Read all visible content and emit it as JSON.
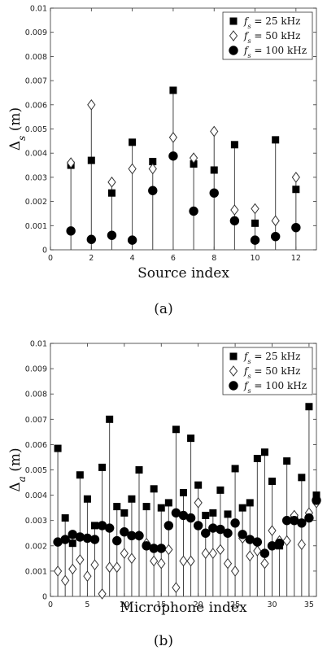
{
  "chart_data": [
    {
      "type": "scatter",
      "caption": "(a)",
      "xlabel": "Source index",
      "ylabel": "Δs (m)",
      "xlim": [
        0,
        13
      ],
      "ylim": [
        0,
        0.01
      ],
      "xticks": [
        0,
        2,
        4,
        6,
        8,
        10,
        12
      ],
      "yticks": [
        0,
        0.001,
        0.002,
        0.003,
        0.004,
        0.005,
        0.006,
        0.007,
        0.008,
        0.009,
        0.01
      ],
      "grid": false,
      "legend_position": "top-right",
      "x": [
        1,
        2,
        3,
        4,
        5,
        6,
        7,
        8,
        9,
        10,
        11,
        12
      ],
      "series": [
        {
          "name": "fs = 25 kHz",
          "marker": "square",
          "values": [
            0.0035,
            0.0037,
            0.00235,
            0.00445,
            0.00365,
            0.0066,
            0.00355,
            0.0033,
            0.00435,
            0.0011,
            0.00455,
            0.0025
          ]
        },
        {
          "name": "fs = 50 kHz",
          "marker": "diamond",
          "values": [
            0.0036,
            0.006,
            0.0028,
            0.00335,
            0.00335,
            0.00465,
            0.0038,
            0.0049,
            0.00165,
            0.0017,
            0.0012,
            0.003
          ]
        },
        {
          "name": "fs = 100 kHz",
          "marker": "circle",
          "values": [
            0.00078,
            0.00043,
            0.0006,
            0.0004,
            0.00245,
            0.00388,
            0.0016,
            0.00235,
            0.0012,
            0.0004,
            0.00055,
            0.00092
          ]
        }
      ]
    },
    {
      "type": "scatter",
      "caption": "(b)",
      "xlabel": "Microphone index",
      "ylabel": "Δa (m)",
      "xlim": [
        0,
        36
      ],
      "ylim": [
        0,
        0.01
      ],
      "xticks": [
        0,
        5,
        10,
        15,
        20,
        25,
        30,
        35
      ],
      "yticks": [
        0,
        0.001,
        0.002,
        0.003,
        0.004,
        0.005,
        0.006,
        0.007,
        0.008,
        0.009,
        0.01
      ],
      "grid": false,
      "legend_position": "top-right",
      "x": [
        1,
        2,
        3,
        4,
        5,
        6,
        7,
        8,
        9,
        10,
        11,
        12,
        13,
        14,
        15,
        16,
        17,
        18,
        19,
        20,
        21,
        22,
        23,
        24,
        25,
        26,
        27,
        28,
        29,
        30,
        31,
        32,
        33,
        34,
        35,
        36
      ],
      "series": [
        {
          "name": "fs = 25 kHz",
          "marker": "square",
          "values": [
            0.00585,
            0.0031,
            0.0021,
            0.0048,
            0.00385,
            0.0028,
            0.0051,
            0.007,
            0.00355,
            0.0033,
            0.00385,
            0.005,
            0.00355,
            0.00425,
            0.0035,
            0.0037,
            0.0066,
            0.0041,
            0.00625,
            0.0044,
            0.0032,
            0.0033,
            0.0042,
            0.00325,
            0.00505,
            0.0035,
            0.0037,
            0.00545,
            0.0057,
            0.00455,
            0.002,
            0.00535,
            0.0031,
            0.0047,
            0.0075,
            0.004
          ]
        },
        {
          "name": "fs = 50 kHz",
          "marker": "diamond",
          "values": [
            0.001,
            0.00063,
            0.00108,
            0.00145,
            0.0008,
            0.00125,
            0.0001,
            0.00115,
            0.00115,
            0.0017,
            0.0015,
            0.0024,
            0.0021,
            0.0014,
            0.0013,
            0.00185,
            0.00035,
            0.0014,
            0.0014,
            0.0037,
            0.0017,
            0.0017,
            0.00185,
            0.0013,
            0.001,
            0.0023,
            0.0016,
            0.0018,
            0.0013,
            0.0026,
            0.0022,
            0.0022,
            0.0032,
            0.00205,
            0.0033,
            0.0037
          ]
        },
        {
          "name": "fs = 100 kHz",
          "marker": "circle",
          "values": [
            0.00215,
            0.00225,
            0.00245,
            0.00235,
            0.0023,
            0.00225,
            0.0028,
            0.0027,
            0.0022,
            0.00255,
            0.0024,
            0.0024,
            0.002,
            0.0019,
            0.0019,
            0.0028,
            0.0033,
            0.0032,
            0.0031,
            0.0028,
            0.0025,
            0.0027,
            0.00265,
            0.0025,
            0.0029,
            0.00245,
            0.00225,
            0.00215,
            0.0017,
            0.002,
            0.0021,
            0.003,
            0.003,
            0.0029,
            0.0031,
            0.0038
          ]
        }
      ]
    }
  ],
  "legend_labels": {
    "prefix": "f",
    "sub": "s",
    "values": [
      " = 25 kHz",
      " = 50 kHz",
      " = 100 kHz"
    ]
  }
}
